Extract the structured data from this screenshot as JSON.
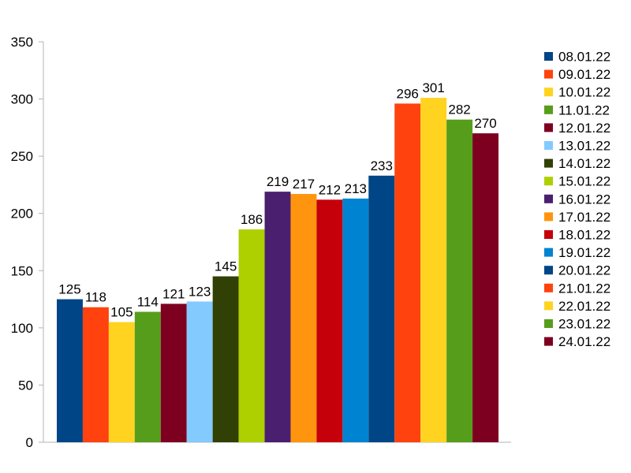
{
  "chart_data": {
    "type": "bar",
    "title": "",
    "xlabel": "",
    "ylabel": "",
    "ylim": [
      0,
      350
    ],
    "yticks": [
      0,
      50,
      100,
      150,
      200,
      250,
      300,
      350
    ],
    "grid": false,
    "legend_position": "right",
    "series": [
      {
        "name": "08.01.22",
        "value": 125,
        "color": "#004586"
      },
      {
        "name": "09.01.22",
        "value": 118,
        "color": "#ff420e"
      },
      {
        "name": "10.01.22",
        "value": 105,
        "color": "#ffd320"
      },
      {
        "name": "11.01.22",
        "value": 114,
        "color": "#579d1c"
      },
      {
        "name": "12.01.22",
        "value": 121,
        "color": "#7e0021"
      },
      {
        "name": "13.01.22",
        "value": 123,
        "color": "#83caff"
      },
      {
        "name": "14.01.22",
        "value": 145,
        "color": "#314004"
      },
      {
        "name": "15.01.22",
        "value": 186,
        "color": "#aecf00"
      },
      {
        "name": "16.01.22",
        "value": 219,
        "color": "#4b1f6f"
      },
      {
        "name": "17.01.22",
        "value": 217,
        "color": "#ff950e"
      },
      {
        "name": "18.01.22",
        "value": 212,
        "color": "#c5000b"
      },
      {
        "name": "19.01.22",
        "value": 213,
        "color": "#0084d1"
      },
      {
        "name": "20.01.22",
        "value": 233,
        "color": "#004586"
      },
      {
        "name": "21.01.22",
        "value": 296,
        "color": "#ff420e"
      },
      {
        "name": "22.01.22",
        "value": 301,
        "color": "#ffd320"
      },
      {
        "name": "23.01.22",
        "value": 282,
        "color": "#579d1c"
      },
      {
        "name": "24.01.22",
        "value": 270,
        "color": "#7e0021"
      }
    ]
  }
}
